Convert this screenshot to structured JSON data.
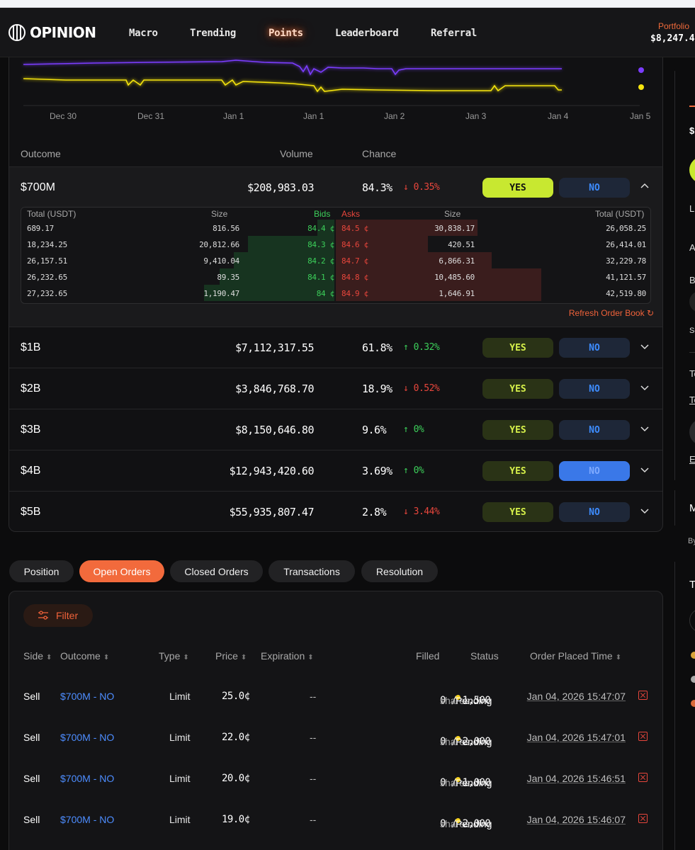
{
  "nav": {
    "brand": "OPINION",
    "items": [
      "Macro",
      "Trending",
      "Points",
      "Leaderboard",
      "Referral"
    ],
    "active": "Points",
    "portfolio_label": "Portfolio",
    "portfolio_value": "$8,247.4"
  },
  "chart_data": {
    "type": "line",
    "x_ticks": [
      "Dec 30",
      "Dec 31",
      "Jan 1",
      "Jan 1",
      "Jan 2",
      "Jan 3",
      "Jan 4",
      "Jan 5"
    ],
    "series": [
      {
        "color": "#7b3cff"
      },
      {
        "color": "#f5e40e"
      }
    ]
  },
  "table": {
    "headers": {
      "outcome": "Outcome",
      "volume": "Volume",
      "chance": "Chance"
    },
    "rows": [
      {
        "name": "$700M",
        "volume": "$208,983.03",
        "chance": "84.3%",
        "delta": "0.35%",
        "dir": "down"
      },
      {
        "name": "$1B",
        "volume": "$7,112,317.55",
        "chance": "61.8%",
        "delta": "0.32%",
        "dir": "up"
      },
      {
        "name": "$2B",
        "volume": "$3,846,768.70",
        "chance": "18.9%",
        "delta": "0.52%",
        "dir": "down"
      },
      {
        "name": "$3B",
        "volume": "$8,150,646.80",
        "chance": "9.6%",
        "delta": "0%",
        "dir": "up"
      },
      {
        "name": "$4B",
        "volume": "$12,943,420.60",
        "chance": "3.69%",
        "delta": "0%",
        "dir": "up"
      },
      {
        "name": "$5B",
        "volume": "$55,935,807.47",
        "chance": "2.8%",
        "delta": "3.44%",
        "dir": "down"
      }
    ],
    "yes_label": "YES",
    "no_label": "NO"
  },
  "orderbook": {
    "headers": {
      "total_left": "Total (USDT)",
      "size_left": "Size",
      "bids": "Bids",
      "asks": "Asks",
      "size_right": "Size",
      "total_right": "Total (USDT)"
    },
    "rows": [
      {
        "total_b": "689.17",
        "size_b": "816.56",
        "bid": "84.4 ¢",
        "ask": "84.5 ¢",
        "size_a": "30,838.17",
        "total_a": "26,058.25"
      },
      {
        "total_b": "18,234.25",
        "size_b": "20,812.66",
        "bid": "84.3 ¢",
        "ask": "84.6 ¢",
        "size_a": "420.51",
        "total_a": "26,414.01"
      },
      {
        "total_b": "26,157.51",
        "size_b": "9,410.04",
        "bid": "84.2 ¢",
        "ask": "84.7 ¢",
        "size_a": "6,866.31",
        "total_a": "32,229.78"
      },
      {
        "total_b": "26,232.65",
        "size_b": "89.35",
        "bid": "84.1 ¢",
        "ask": "84.8 ¢",
        "size_a": "10,485.60",
        "total_a": "41,121.57"
      },
      {
        "total_b": "27,232.65",
        "size_b": "1,190.47",
        "bid": "84 ¢",
        "ask": "84.9 ¢",
        "size_a": "1,646.91",
        "total_a": "42,519.80"
      }
    ],
    "refresh_label": "Refresh Order Book"
  },
  "tabs": [
    "Position",
    "Open Orders",
    "Closed Orders",
    "Transactions",
    "Resolution"
  ],
  "active_tab": "Open Orders",
  "orders": {
    "filter_label": "Filter",
    "headers": {
      "side": "Side",
      "outcome": "Outcome",
      "type": "Type",
      "price": "Price",
      "expiration": "Expiration",
      "filled": "Filled",
      "status": "Status",
      "time": "Order Placed Time"
    },
    "rows": [
      {
        "side": "Sell",
        "outcome": "$700M - NO",
        "type": "Limit",
        "price": "25.0¢",
        "expiration": "--",
        "filled": "0 / 1,500",
        "unit": "shares",
        "status": "Pending",
        "time": "Jan 04, 2026 15:47:07"
      },
      {
        "side": "Sell",
        "outcome": "$700M - NO",
        "type": "Limit",
        "price": "22.0¢",
        "expiration": "--",
        "filled": "0 / 2,000",
        "unit": "shares",
        "status": "Pending",
        "time": "Jan 04, 2026 15:47:01"
      },
      {
        "side": "Sell",
        "outcome": "$700M - NO",
        "type": "Limit",
        "price": "20.0¢",
        "expiration": "--",
        "filled": "0 / 1,000",
        "unit": "shares",
        "status": "Pending",
        "time": "Jan 04, 2026 15:46:51"
      },
      {
        "side": "Sell",
        "outcome": "$700M - NO",
        "type": "Limit",
        "price": "19.0¢",
        "expiration": "--",
        "filled": "0 / 2,000",
        "unit": "shares",
        "status": "Pending",
        "time": "Jan 04, 2026 15:46:07"
      }
    ]
  },
  "side_panel": {
    "glyphs": [
      "$",
      "Li",
      "A",
      "B",
      "Se",
      "To",
      "To",
      "E",
      "M",
      "By",
      "T"
    ]
  }
}
